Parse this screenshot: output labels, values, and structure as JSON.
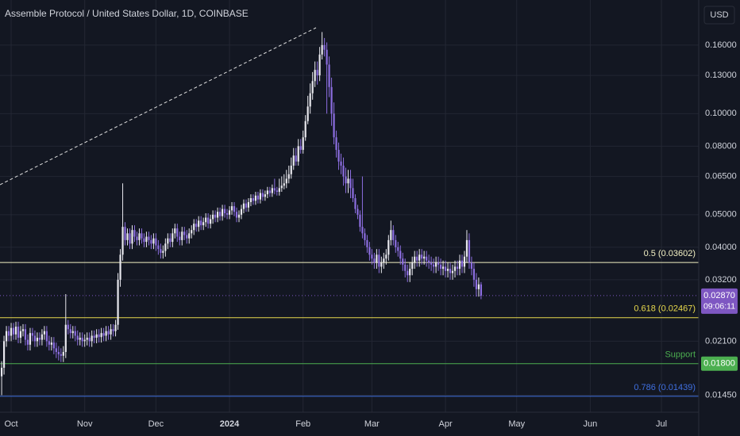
{
  "chart_data": {
    "type": "candlestick",
    "title": "Assemble Protocol / United States Dollar, 1D, COINBASE",
    "currency": "USD",
    "y_scale": "log",
    "grid": true,
    "up_color": "#e8e8ee",
    "down_color": "#8c6ee0",
    "xlim": [
      -0.7,
      293.7
    ],
    "ylim": [
      0.0129,
      0.218
    ],
    "xticks": [
      {
        "value": 4,
        "label": "Oct"
      },
      {
        "value": 35,
        "label": "Nov"
      },
      {
        "value": 65,
        "label": "Dec"
      },
      {
        "value": 96,
        "label": "2024"
      },
      {
        "value": 127,
        "label": "Feb"
      },
      {
        "value": 156,
        "label": "Mar"
      },
      {
        "value": 187,
        "label": "Apr"
      },
      {
        "value": 217,
        "label": "May"
      },
      {
        "value": 248,
        "label": "Jun"
      },
      {
        "value": 278,
        "label": "Jul"
      }
    ],
    "yticks": [
      {
        "value": 0.16,
        "label": "0.16000"
      },
      {
        "value": 0.13,
        "label": "0.13000"
      },
      {
        "value": 0.1,
        "label": "0.10000"
      },
      {
        "value": 0.08,
        "label": "0.08000"
      },
      {
        "value": 0.065,
        "label": "0.06500"
      },
      {
        "value": 0.05,
        "label": "0.05000"
      },
      {
        "value": 0.04,
        "label": "0.04000"
      },
      {
        "value": 0.032,
        "label": "0.03200"
      },
      {
        "value": 0.021,
        "label": "0.02100"
      },
      {
        "value": 0.0145,
        "label": "0.01450"
      }
    ],
    "levels": [
      {
        "label": "0.5 (0.03602)",
        "value": 0.03602,
        "color": "#f3f1c4"
      },
      {
        "label": "0.618 (0.02467)",
        "value": 0.02467,
        "color": "#e8d94c"
      },
      {
        "label": "Support",
        "value": 0.018,
        "value_label": "0.01800",
        "color": "#4caf50"
      },
      {
        "label": "0.786 (0.01439)",
        "value": 0.01439,
        "color": "#3f6fe0"
      }
    ],
    "last_price": {
      "value": 0.0287,
      "value_label": "0.02870",
      "countdown": "09:06:11",
      "color": "#7e57c2"
    },
    "x": [
      0,
      1,
      2,
      3,
      4,
      5,
      6,
      7,
      8,
      9,
      10,
      11,
      12,
      13,
      14,
      15,
      16,
      17,
      18,
      19,
      20,
      21,
      22,
      23,
      24,
      25,
      26,
      27,
      28,
      29,
      30,
      31,
      32,
      33,
      34,
      35,
      36,
      37,
      38,
      39,
      40,
      41,
      42,
      43,
      44,
      45,
      46,
      47,
      48,
      49,
      50,
      51,
      52,
      53,
      54,
      55,
      56,
      57,
      58,
      59,
      60,
      61,
      62,
      63,
      64,
      65,
      66,
      67,
      68,
      69,
      70,
      71,
      72,
      73,
      74,
      75,
      76,
      77,
      78,
      79,
      80,
      81,
      82,
      83,
      84,
      85,
      86,
      87,
      88,
      89,
      90,
      91,
      92,
      93,
      94,
      95,
      96,
      97,
      98,
      99,
      100,
      101,
      102,
      103,
      104,
      105,
      106,
      107,
      108,
      109,
      110,
      111,
      112,
      113,
      114,
      115,
      116,
      117,
      118,
      119,
      120,
      121,
      122,
      123,
      124,
      125,
      126,
      127,
      128,
      129,
      130,
      131,
      132,
      133,
      134,
      135,
      136,
      137,
      138,
      139,
      140,
      141,
      142,
      143,
      144,
      145,
      146,
      147,
      148,
      149,
      150,
      151,
      152,
      153,
      154,
      155,
      156,
      157,
      158,
      159,
      160,
      161,
      162,
      163,
      164,
      165,
      166,
      167,
      168,
      169,
      170,
      171,
      172,
      173,
      174,
      175,
      176,
      177,
      178,
      179,
      180,
      181,
      182,
      183,
      184,
      185,
      186,
      187,
      188,
      189,
      190,
      191,
      192,
      193,
      194,
      195,
      196,
      197,
      198,
      199,
      200,
      201,
      202
    ],
    "open": [
      0.0165,
      0.0175,
      0.021,
      0.0225,
      0.0218,
      0.023,
      0.022,
      0.0232,
      0.0215,
      0.0225,
      0.0228,
      0.0212,
      0.0205,
      0.0222,
      0.0218,
      0.021,
      0.0215,
      0.0212,
      0.022,
      0.0225,
      0.021,
      0.0205,
      0.0208,
      0.02,
      0.0195,
      0.0192,
      0.019,
      0.0195,
      0.0235,
      0.0228,
      0.0222,
      0.0225,
      0.0218,
      0.0212,
      0.0215,
      0.021,
      0.0212,
      0.0215,
      0.021,
      0.0218,
      0.0215,
      0.022,
      0.0216,
      0.0222,
      0.0218,
      0.0225,
      0.022,
      0.0228,
      0.0225,
      0.0235,
      0.032,
      0.038,
      0.046,
      0.042,
      0.044,
      0.041,
      0.045,
      0.043,
      0.042,
      0.044,
      0.0425,
      0.0415,
      0.043,
      0.042,
      0.041,
      0.0425,
      0.0405,
      0.0395,
      0.0385,
      0.039,
      0.041,
      0.0425,
      0.0415,
      0.044,
      0.0455,
      0.043,
      0.042,
      0.0445,
      0.0435,
      0.0425,
      0.044,
      0.045,
      0.047,
      0.046,
      0.048,
      0.0465,
      0.0475,
      0.049,
      0.047,
      0.0485,
      0.05,
      0.049,
      0.051,
      0.0495,
      0.052,
      0.0505,
      0.05,
      0.0515,
      0.053,
      0.051,
      0.049,
      0.05,
      0.052,
      0.054,
      0.0525,
      0.0545,
      0.056,
      0.055,
      0.057,
      0.0555,
      0.058,
      0.0565,
      0.0575,
      0.059,
      0.058,
      0.06,
      0.059,
      0.0585,
      0.06,
      0.061,
      0.062,
      0.064,
      0.066,
      0.07,
      0.075,
      0.072,
      0.08,
      0.078,
      0.085,
      0.095,
      0.105,
      0.115,
      0.125,
      0.135,
      0.13,
      0.15,
      0.16,
      0.155,
      0.14,
      0.12,
      0.1,
      0.085,
      0.078,
      0.072,
      0.07,
      0.065,
      0.062,
      0.064,
      0.06,
      0.056,
      0.052,
      0.05,
      0.046,
      0.044,
      0.042,
      0.04,
      0.038,
      0.037,
      0.036,
      0.038,
      0.035,
      0.036,
      0.037,
      0.038,
      0.042,
      0.045,
      0.042,
      0.04,
      0.039,
      0.037,
      0.0355,
      0.034,
      0.033,
      0.0345,
      0.036,
      0.0375,
      0.0365,
      0.038,
      0.037,
      0.0375,
      0.0365,
      0.036,
      0.0355,
      0.035,
      0.036,
      0.0355,
      0.0345,
      0.035,
      0.034,
      0.0345,
      0.0335,
      0.034,
      0.035,
      0.0345,
      0.0365,
      0.035,
      0.0375,
      0.042,
      0.036,
      0.0345,
      0.032,
      0.03,
      0.031
    ],
    "high": [
      0.0183,
      0.0218,
      0.0233,
      0.0233,
      0.0238,
      0.0238,
      0.024,
      0.024,
      0.0233,
      0.0236,
      0.0236,
      0.022,
      0.023,
      0.023,
      0.0226,
      0.0223,
      0.0223,
      0.0228,
      0.0233,
      0.0233,
      0.0218,
      0.0216,
      0.0216,
      0.0208,
      0.0203,
      0.02,
      0.0203,
      0.029,
      0.0243,
      0.0236,
      0.0233,
      0.0233,
      0.0226,
      0.0223,
      0.0223,
      0.022,
      0.0223,
      0.0223,
      0.0226,
      0.0226,
      0.0228,
      0.0228,
      0.023,
      0.023,
      0.0233,
      0.0233,
      0.0236,
      0.0236,
      0.0243,
      0.0335,
      0.0395,
      0.062,
      0.0475,
      0.0455,
      0.0455,
      0.0465,
      0.0465,
      0.0445,
      0.0455,
      0.0455,
      0.044,
      0.0445,
      0.0445,
      0.0435,
      0.044,
      0.044,
      0.042,
      0.041,
      0.0405,
      0.0425,
      0.044,
      0.044,
      0.0455,
      0.047,
      0.047,
      0.0445,
      0.046,
      0.046,
      0.045,
      0.0455,
      0.0465,
      0.0485,
      0.0485,
      0.0495,
      0.0495,
      0.049,
      0.0505,
      0.0505,
      0.05,
      0.0515,
      0.0515,
      0.0525,
      0.0525,
      0.0535,
      0.0535,
      0.052,
      0.053,
      0.0545,
      0.0545,
      0.0525,
      0.0515,
      0.0535,
      0.0555,
      0.0555,
      0.056,
      0.0575,
      0.0575,
      0.0585,
      0.0585,
      0.0595,
      0.0595,
      0.059,
      0.0605,
      0.0605,
      0.0615,
      0.064,
      0.0605,
      0.064,
      0.065,
      0.066,
      0.068,
      0.07,
      0.074,
      0.079,
      0.079,
      0.084,
      0.084,
      0.089,
      0.099,
      0.113,
      0.123,
      0.133,
      0.143,
      0.143,
      0.158,
      0.175,
      0.168,
      0.163,
      0.148,
      0.128,
      0.108,
      0.089,
      0.082,
      0.076,
      0.074,
      0.069,
      0.068,
      0.068,
      0.064,
      0.0575,
      0.0535,
      0.0515,
      0.065,
      0.0455,
      0.0435,
      0.0415,
      0.0395,
      0.0385,
      0.0395,
      0.0395,
      0.0375,
      0.0385,
      0.0395,
      0.0435,
      0.048,
      0.0465,
      0.0435,
      0.0415,
      0.0405,
      0.0385,
      0.037,
      0.0355,
      0.036,
      0.0375,
      0.039,
      0.039,
      0.0395,
      0.0395,
      0.039,
      0.039,
      0.038,
      0.0375,
      0.037,
      0.0375,
      0.0375,
      0.037,
      0.0365,
      0.0365,
      0.036,
      0.036,
      0.0355,
      0.0365,
      0.0365,
      0.038,
      0.038,
      0.039,
      0.045,
      0.044,
      0.0375,
      0.036,
      0.0335,
      0.0325,
      0.0315
    ],
    "low": [
      0.0145,
      0.0167,
      0.0202,
      0.021,
      0.021,
      0.0212,
      0.0212,
      0.0207,
      0.0207,
      0.0217,
      0.0204,
      0.0197,
      0.0197,
      0.021,
      0.0202,
      0.0202,
      0.0204,
      0.0204,
      0.0212,
      0.0202,
      0.0197,
      0.0197,
      0.0192,
      0.0187,
      0.0184,
      0.0182,
      0.0182,
      0.0187,
      0.022,
      0.0214,
      0.0214,
      0.021,
      0.0204,
      0.0204,
      0.0202,
      0.0202,
      0.0204,
      0.0202,
      0.0202,
      0.0207,
      0.0207,
      0.0208,
      0.0208,
      0.021,
      0.021,
      0.0212,
      0.0212,
      0.0217,
      0.0217,
      0.0227,
      0.0305,
      0.0365,
      0.0405,
      0.0405,
      0.0395,
      0.0395,
      0.0415,
      0.0405,
      0.0405,
      0.041,
      0.04,
      0.04,
      0.0405,
      0.0395,
      0.0395,
      0.039,
      0.038,
      0.037,
      0.037,
      0.0375,
      0.0395,
      0.04,
      0.04,
      0.0425,
      0.0415,
      0.0405,
      0.0405,
      0.042,
      0.041,
      0.041,
      0.0425,
      0.0435,
      0.0445,
      0.0445,
      0.045,
      0.045,
      0.046,
      0.0455,
      0.0455,
      0.047,
      0.0475,
      0.0475,
      0.048,
      0.048,
      0.049,
      0.0485,
      0.0485,
      0.05,
      0.0495,
      0.0475,
      0.0475,
      0.0485,
      0.0505,
      0.051,
      0.051,
      0.053,
      0.0535,
      0.0535,
      0.054,
      0.054,
      0.055,
      0.055,
      0.056,
      0.0565,
      0.0565,
      0.0575,
      0.057,
      0.057,
      0.0585,
      0.0595,
      0.06,
      0.062,
      0.064,
      0.068,
      0.07,
      0.07,
      0.076,
      0.076,
      0.083,
      0.093,
      0.1,
      0.11,
      0.12,
      0.122,
      0.125,
      0.145,
      0.148,
      0.1,
      0.112,
      0.092,
      0.081,
      0.074,
      0.068,
      0.066,
      0.061,
      0.058,
      0.058,
      0.056,
      0.0545,
      0.0505,
      0.0485,
      0.0445,
      0.0425,
      0.0405,
      0.0385,
      0.0365,
      0.0355,
      0.0345,
      0.0345,
      0.0335,
      0.0335,
      0.0345,
      0.0355,
      0.0365,
      0.0405,
      0.0405,
      0.0385,
      0.0375,
      0.0355,
      0.034,
      0.0325,
      0.0315,
      0.0315,
      0.033,
      0.0345,
      0.035,
      0.035,
      0.0355,
      0.0355,
      0.035,
      0.0345,
      0.034,
      0.0335,
      0.0335,
      0.034,
      0.033,
      0.033,
      0.0325,
      0.0325,
      0.032,
      0.032,
      0.0325,
      0.033,
      0.033,
      0.0335,
      0.0335,
      0.036,
      0.0345,
      0.033,
      0.0305,
      0.0285,
      0.0285,
      0.028
    ],
    "close": [
      0.0175,
      0.021,
      0.0225,
      0.0218,
      0.023,
      0.022,
      0.0232,
      0.0215,
      0.0225,
      0.0228,
      0.0212,
      0.0205,
      0.0222,
      0.0218,
      0.021,
      0.0215,
      0.0212,
      0.022,
      0.0225,
      0.021,
      0.0205,
      0.0208,
      0.02,
      0.0195,
      0.0192,
      0.019,
      0.0195,
      0.0235,
      0.0228,
      0.0222,
      0.0225,
      0.0218,
      0.0212,
      0.0215,
      0.021,
      0.0212,
      0.0215,
      0.021,
      0.0218,
      0.0215,
      0.022,
      0.0216,
      0.0222,
      0.0218,
      0.0225,
      0.022,
      0.0228,
      0.0225,
      0.0235,
      0.032,
      0.038,
      0.046,
      0.042,
      0.044,
      0.041,
      0.045,
      0.043,
      0.042,
      0.044,
      0.0425,
      0.0415,
      0.043,
      0.042,
      0.041,
      0.0425,
      0.0405,
      0.0395,
      0.0385,
      0.039,
      0.041,
      0.0425,
      0.0415,
      0.044,
      0.0455,
      0.043,
      0.042,
      0.0445,
      0.0435,
      0.0425,
      0.044,
      0.045,
      0.047,
      0.046,
      0.048,
      0.0465,
      0.0475,
      0.049,
      0.047,
      0.0485,
      0.05,
      0.049,
      0.051,
      0.0495,
      0.052,
      0.0505,
      0.05,
      0.0515,
      0.053,
      0.051,
      0.049,
      0.05,
      0.052,
      0.054,
      0.0525,
      0.0545,
      0.056,
      0.055,
      0.057,
      0.0555,
      0.058,
      0.0565,
      0.0575,
      0.059,
      0.058,
      0.06,
      0.059,
      0.0585,
      0.06,
      0.061,
      0.062,
      0.064,
      0.066,
      0.07,
      0.075,
      0.072,
      0.08,
      0.078,
      0.085,
      0.095,
      0.105,
      0.115,
      0.125,
      0.135,
      0.13,
      0.15,
      0.16,
      0.155,
      0.14,
      0.12,
      0.1,
      0.085,
      0.078,
      0.072,
      0.07,
      0.065,
      0.062,
      0.064,
      0.06,
      0.056,
      0.052,
      0.05,
      0.046,
      0.044,
      0.042,
      0.04,
      0.038,
      0.037,
      0.036,
      0.038,
      0.035,
      0.036,
      0.037,
      0.038,
      0.042,
      0.045,
      0.042,
      0.04,
      0.039,
      0.037,
      0.0355,
      0.034,
      0.033,
      0.0345,
      0.036,
      0.0375,
      0.0365,
      0.038,
      0.037,
      0.0375,
      0.0365,
      0.036,
      0.0355,
      0.035,
      0.036,
      0.0355,
      0.0345,
      0.035,
      0.034,
      0.0345,
      0.0335,
      0.034,
      0.035,
      0.0345,
      0.0365,
      0.035,
      0.0375,
      0.042,
      0.036,
      0.0345,
      0.032,
      0.03,
      0.031,
      0.0287
    ]
  }
}
